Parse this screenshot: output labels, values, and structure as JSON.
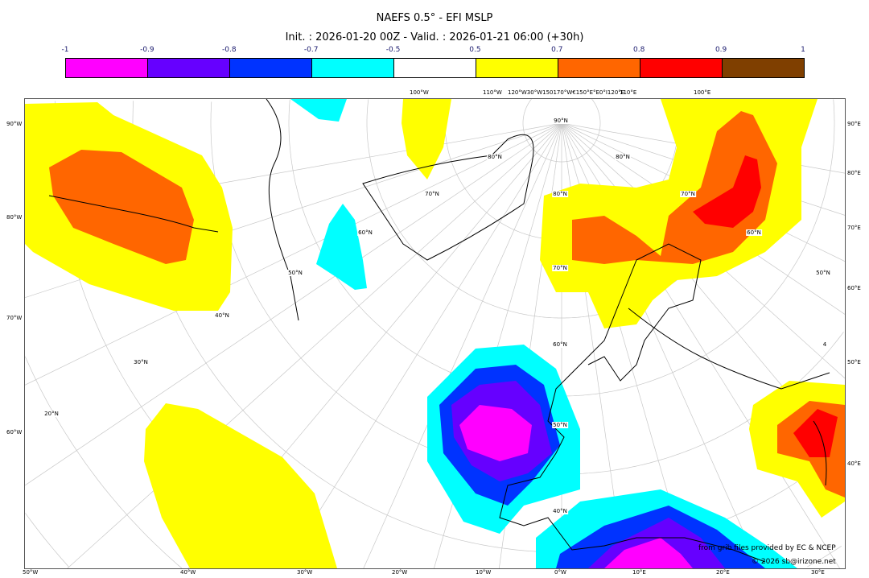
{
  "title": "NAEFS 0.5° - EFI MSLP",
  "subtitle": "Init. : 2026-01-20 00Z - Valid. : 2026-01-21 06:00 (+30h)",
  "colorbar": {
    "ticks": [
      "-1",
      "-0.9",
      "-0.8",
      "-0.7",
      "-0.5",
      "0.5",
      "0.7",
      "0.8",
      "0.9",
      "1"
    ],
    "colors": [
      "#ff00ff",
      "#6600ff",
      "#0033ff",
      "#00ffff",
      "#ffffff",
      "#ffff00",
      "#ff6600",
      "#ff0000",
      "#7f3f00"
    ]
  },
  "axes": {
    "left": [
      "90°W",
      "80°W",
      "70°W",
      "60°W"
    ],
    "right": [
      "90°E",
      "80°E",
      "70°E",
      "60°E",
      "50°E",
      "40°E"
    ],
    "bottom": [
      "50°W",
      "40°W",
      "30°W",
      "20°W",
      "10°W",
      "0°W",
      "10°E",
      "20°E",
      "30°E"
    ],
    "top": [
      "100°W",
      "110°W",
      "120°W30°W150170°W€150°E°E0°I120°E",
      "110°E",
      "100°E"
    ]
  },
  "lat_labels": [
    "90°N",
    "80°N",
    "70°N",
    "60°N",
    "50°N",
    "40°N",
    "30°N",
    "20°N",
    "80°N",
    "70°N",
    "60°N",
    "50°N",
    "40°N",
    "80°N",
    "70°N",
    "60°N",
    "50°N",
    "4"
  ],
  "credits": {
    "line1": "from grib files provided by EC & NCEP",
    "line2": "© 2026 sb@irizone.net"
  }
}
